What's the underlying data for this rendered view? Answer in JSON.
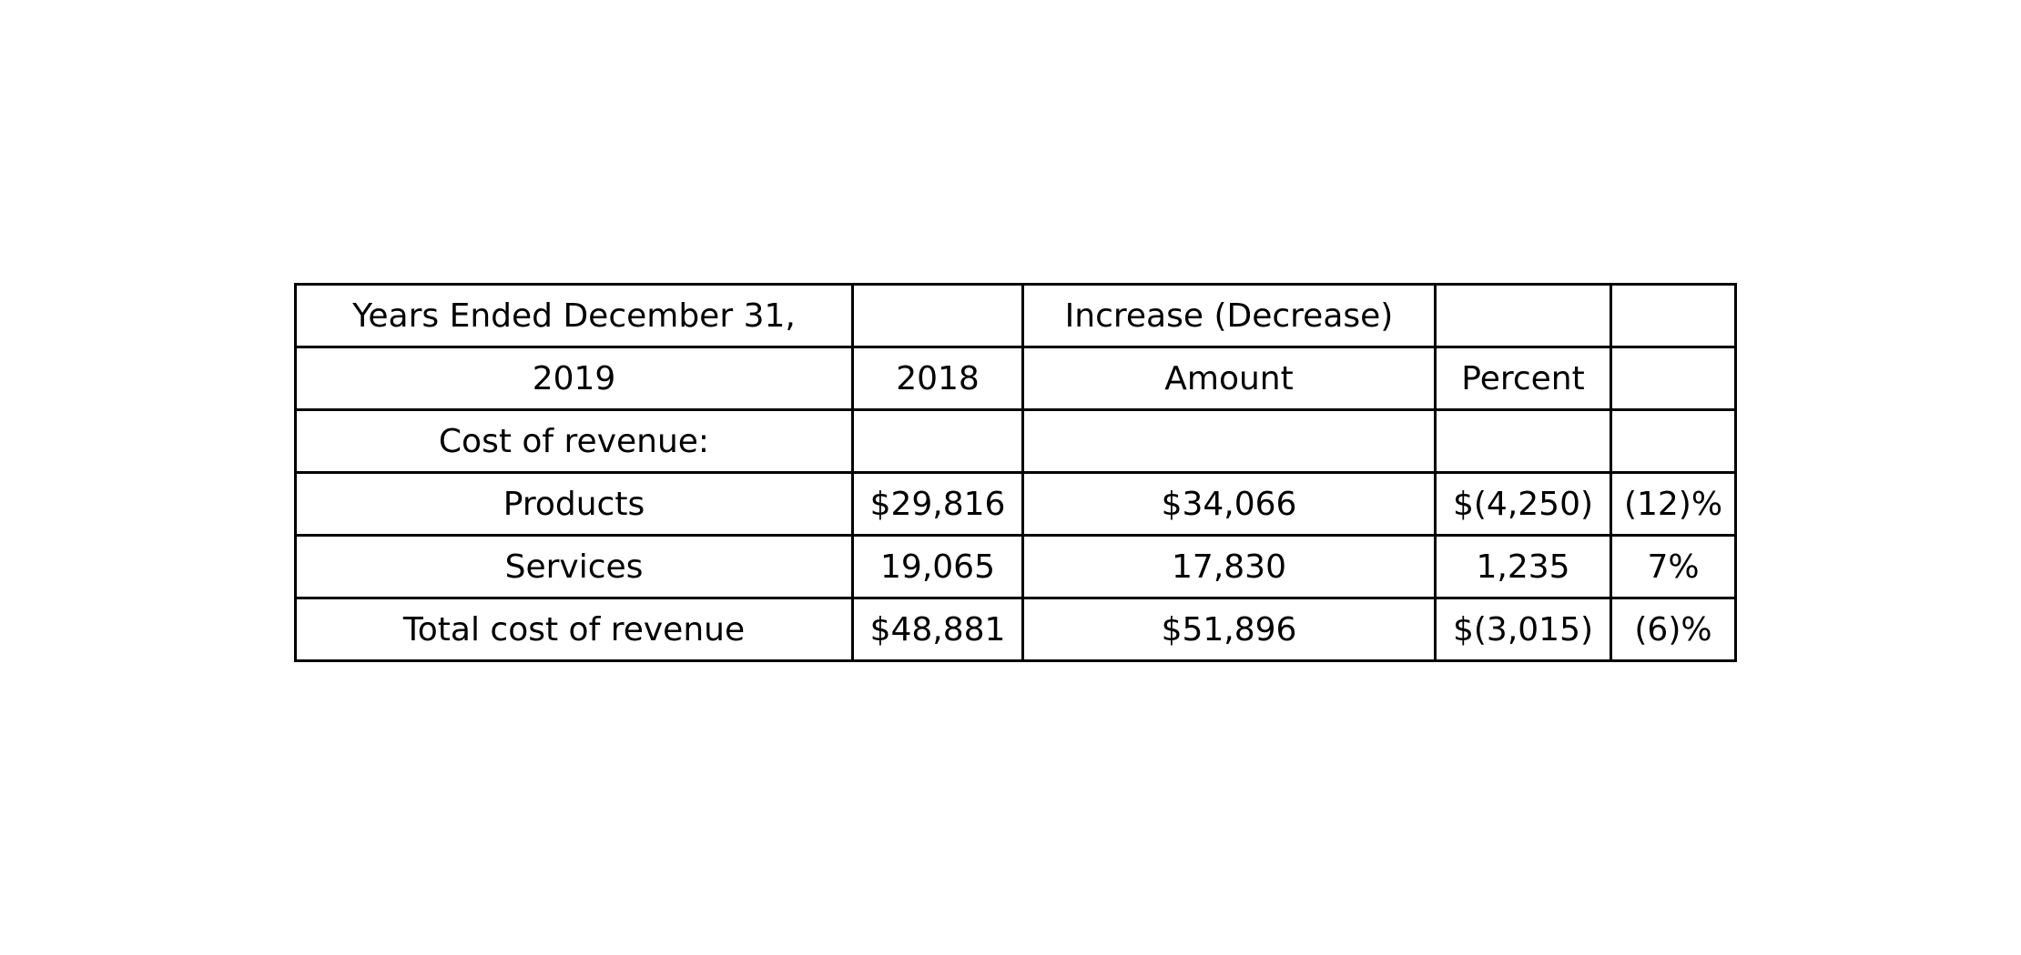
{
  "table": {
    "rows": [
      [
        "Years Ended December 31,",
        "",
        "Increase (Decrease)",
        "",
        ""
      ],
      [
        "2019",
        "2018",
        "Amount",
        "Percent",
        ""
      ],
      [
        "Cost of revenue:",
        "",
        "",
        "",
        ""
      ],
      [
        "Products",
        "$29,816",
        "$34,066",
        "$(4,250)",
        "(12)%"
      ],
      [
        "Services",
        "19,065",
        "17,830",
        "1,235",
        "7%"
      ],
      [
        "Total cost of revenue",
        "$48,881",
        "$51,896",
        "$(3,015)",
        "(6)%"
      ]
    ]
  }
}
